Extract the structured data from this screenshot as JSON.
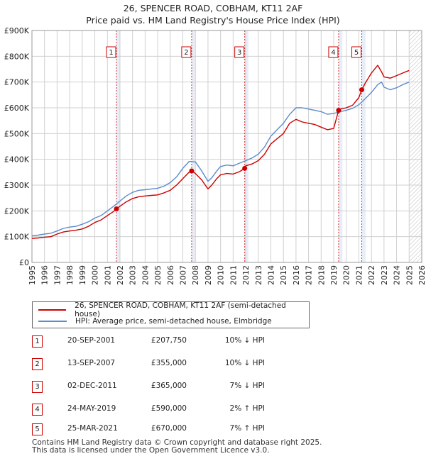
{
  "title_line1": "26, SPENCER ROAD, COBHAM, KT11 2AF",
  "title_line2": "Price paid vs. HM Land Registry's House Price Index (HPI)",
  "colors": {
    "property": "#cc0000",
    "hpi": "#5b8ccc",
    "grid": "#d0d0d0",
    "sale_shade": "#e8eef8"
  },
  "legend": {
    "property_label": "26, SPENCER ROAD, COBHAM, KT11 2AF (semi-detached house)",
    "hpi_label": "HPI: Average price, semi-detached house, Elmbridge"
  },
  "sales": [
    {
      "num": "1",
      "date": "20-SEP-2001",
      "price": "£207,750",
      "hpi": "10% ↓ HPI"
    },
    {
      "num": "2",
      "date": "13-SEP-2007",
      "price": "£355,000",
      "hpi": "10% ↓ HPI"
    },
    {
      "num": "3",
      "date": "02-DEC-2011",
      "price": "£365,000",
      "hpi": "7% ↓ HPI"
    },
    {
      "num": "4",
      "date": "24-MAY-2019",
      "price": "£590,000",
      "hpi": "2% ↑ HPI"
    },
    {
      "num": "5",
      "date": "25-MAR-2021",
      "price": "£670,000",
      "hpi": "7% ↑ HPI"
    }
  ],
  "footer_line1": "Contains HM Land Registry data © Crown copyright and database right 2025.",
  "footer_line2": "This data is licensed under the Open Government Licence v3.0.",
  "chart_data": {
    "type": "line",
    "xlim": [
      1995,
      2026
    ],
    "ylim": [
      0,
      900000
    ],
    "x_ticks": [
      "1995",
      "1996",
      "1997",
      "1998",
      "1999",
      "2000",
      "2001",
      "2002",
      "2003",
      "2004",
      "2005",
      "2006",
      "2007",
      "2008",
      "2009",
      "2010",
      "2011",
      "2012",
      "2013",
      "2014",
      "2015",
      "2016",
      "2017",
      "2018",
      "2019",
      "2020",
      "2021",
      "2022",
      "2023",
      "2024",
      "2025",
      "2026"
    ],
    "y_ticks": [
      {
        "value": 0,
        "label": "£0"
      },
      {
        "value": 100000,
        "label": "£100K"
      },
      {
        "value": 200000,
        "label": "£200K"
      },
      {
        "value": 300000,
        "label": "£300K"
      },
      {
        "value": 400000,
        "label": "£400K"
      },
      {
        "value": 500000,
        "label": "£500K"
      },
      {
        "value": 600000,
        "label": "£600K"
      },
      {
        "value": 700000,
        "label": "£700K"
      },
      {
        "value": 800000,
        "label": "£800K"
      },
      {
        "value": 900000,
        "label": "£900K"
      }
    ],
    "grid": true,
    "future_hatch_from": 2025.0,
    "series": [
      {
        "name": "26, SPENCER ROAD, COBHAM, KT11 2AF (semi-detached house)",
        "x": [
          1995.0,
          1995.5,
          1996.0,
          1996.5,
          1997.0,
          1997.5,
          1998.0,
          1998.5,
          1999.0,
          1999.5,
          2000.0,
          2000.5,
          2001.0,
          2001.5,
          2001.72,
          2002.0,
          2002.5,
          2003.0,
          2003.5,
          2004.0,
          2004.5,
          2005.0,
          2005.5,
          2006.0,
          2006.5,
          2007.0,
          2007.5,
          2007.7,
          2008.0,
          2008.5,
          2009.0,
          2009.3,
          2009.7,
          2010.0,
          2010.5,
          2011.0,
          2011.5,
          2011.92,
          2012.0,
          2012.5,
          2013.0,
          2013.5,
          2014.0,
          2014.5,
          2015.0,
          2015.5,
          2016.0,
          2016.5,
          2017.0,
          2017.5,
          2018.0,
          2018.5,
          2019.0,
          2019.39,
          2019.5,
          2020.0,
          2020.5,
          2021.0,
          2021.23,
          2021.5,
          2022.0,
          2022.5,
          2022.8,
          2023.0,
          2023.5,
          2024.0,
          2024.5,
          2025.0
        ],
        "y": [
          93000,
          95000,
          98000,
          100000,
          110000,
          118000,
          122000,
          125000,
          130000,
          140000,
          155000,
          165000,
          182000,
          198000,
          207750,
          218000,
          235000,
          248000,
          255000,
          258000,
          260000,
          262000,
          270000,
          280000,
          300000,
          325000,
          350000,
          355000,
          345000,
          320000,
          285000,
          300000,
          325000,
          340000,
          345000,
          343000,
          352000,
          365000,
          375000,
          382000,
          395000,
          420000,
          460000,
          480000,
          500000,
          540000,
          555000,
          545000,
          540000,
          535000,
          525000,
          515000,
          520000,
          590000,
          595000,
          600000,
          610000,
          640000,
          670000,
          695000,
          735000,
          765000,
          740000,
          720000,
          715000,
          725000,
          735000,
          745000
        ]
      },
      {
        "name": "HPI: Average price, semi-detached house, Elmbridge",
        "x": [
          1995.0,
          1995.5,
          1996.0,
          1996.5,
          1997.0,
          1997.5,
          1998.0,
          1998.5,
          1999.0,
          1999.5,
          2000.0,
          2000.5,
          2001.0,
          2001.5,
          2002.0,
          2002.5,
          2003.0,
          2003.5,
          2004.0,
          2004.5,
          2005.0,
          2005.5,
          2006.0,
          2006.5,
          2007.0,
          2007.5,
          2008.0,
          2008.5,
          2009.0,
          2009.3,
          2009.7,
          2010.0,
          2010.5,
          2011.0,
          2011.5,
          2012.0,
          2012.5,
          2013.0,
          2013.5,
          2014.0,
          2014.5,
          2015.0,
          2015.5,
          2016.0,
          2016.5,
          2017.0,
          2017.5,
          2018.0,
          2018.5,
          2019.0,
          2019.5,
          2020.0,
          2020.5,
          2021.0,
          2021.5,
          2022.0,
          2022.5,
          2022.8,
          2023.0,
          2023.5,
          2024.0,
          2024.5,
          2025.0
        ],
        "y": [
          103000,
          106000,
          110000,
          113000,
          122000,
          132000,
          137000,
          140000,
          148000,
          158000,
          172000,
          182000,
          200000,
          218000,
          238000,
          258000,
          272000,
          280000,
          282000,
          285000,
          288000,
          296000,
          310000,
          332000,
          365000,
          392000,
          390000,
          355000,
          315000,
          328000,
          355000,
          372000,
          378000,
          375000,
          385000,
          395000,
          405000,
          420000,
          448000,
          490000,
          515000,
          540000,
          575000,
          600000,
          600000,
          595000,
          590000,
          585000,
          575000,
          578000,
          585000,
          590000,
          598000,
          612000,
          635000,
          660000,
          690000,
          700000,
          680000,
          670000,
          678000,
          690000,
          700000
        ]
      }
    ],
    "sale_markers": [
      {
        "num": "1",
        "x": 2001.72,
        "y": 207750
      },
      {
        "num": "2",
        "x": 2007.7,
        "y": 355000
      },
      {
        "num": "3",
        "x": 2011.92,
        "y": 365000
      },
      {
        "num": "4",
        "x": 2019.39,
        "y": 590000
      },
      {
        "num": "5",
        "x": 2021.23,
        "y": 670000
      }
    ]
  }
}
